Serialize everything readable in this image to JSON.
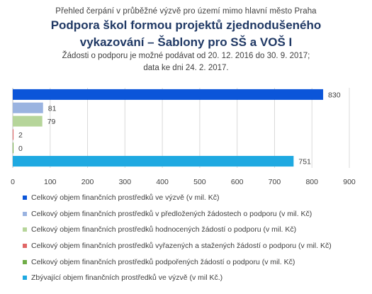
{
  "header": {
    "supertitle": "Přehled čerpání v průběžné výzvě pro území mimo hlavní město Praha",
    "title_line1": "Podpora škol formou projektů zjednodušeného",
    "title_line2": "vykazování – Šablony pro SŠ a VOŠ I",
    "subtitle_line1": "Žádosti o podporu je možné podávat od 20. 12. 2016 do 30. 9. 2017;",
    "subtitle_line2": "data ke dni 24. 2. 2017."
  },
  "chart_data": {
    "type": "bar",
    "orientation": "horizontal",
    "xlim": [
      0,
      900
    ],
    "xticks": [
      "0",
      "100",
      "200",
      "300",
      "400",
      "500",
      "600",
      "700",
      "800",
      "900"
    ],
    "grid": true,
    "legend_position": "bottom",
    "series": [
      {
        "name": "Celkový objem finančních prostředků ve výzvě (v mil. Kč)",
        "value": 830,
        "label": "830",
        "color": "#0b55d9"
      },
      {
        "name": "Celkový objem finančních prostředků v předložených žádostech o podporu (v mil. Kč)",
        "value": 81,
        "label": "81",
        "color": "#9ab3e0"
      },
      {
        "name": "Celkový objem finančních prostředků hodnocených žádostí o podporu (v mil. Kč)",
        "value": 79,
        "label": "79",
        "color": "#b6d59a"
      },
      {
        "name": "Celkový objem finančních prostředků vyřazených a stažených žádostí o podporu (v mil. Kč)",
        "value": 2,
        "label": "2",
        "color": "#e06666"
      },
      {
        "name": "Celkový objem finančních prostředků podpořených žádostí o podporu (v mil. Kč)",
        "value": 0,
        "label": "0",
        "color": "#70ad47"
      },
      {
        "name": "Zbývající objem finančních prostředků ve výzvě (v mil Kč.)",
        "value": 751,
        "label": "751",
        "color": "#1fa9e1"
      }
    ]
  }
}
